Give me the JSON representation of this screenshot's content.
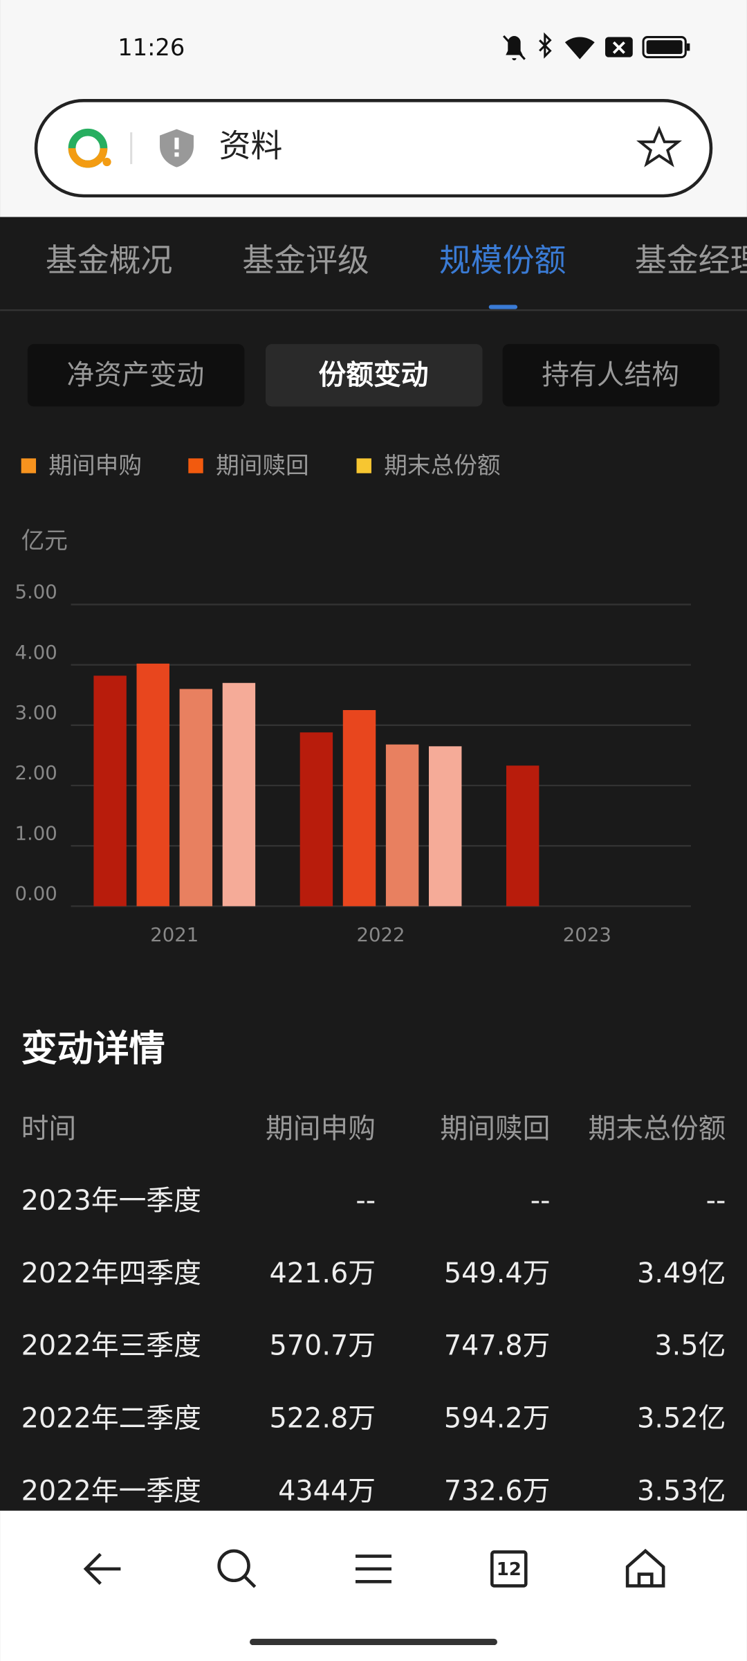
{
  "status_bar": {
    "time": "11:26"
  },
  "url_bar": {
    "text": "资料"
  },
  "tabs": [
    {
      "label": "基金概况"
    },
    {
      "label": "基金评级"
    },
    {
      "label": "规模份额",
      "active": true
    },
    {
      "label": "基金经理"
    }
  ],
  "sub_tabs": [
    {
      "label": "净资产变动"
    },
    {
      "label": "份额变动",
      "active": true
    },
    {
      "label": "持有人结构"
    }
  ],
  "chart_data": {
    "type": "bar",
    "legend": [
      {
        "name": "期间申购",
        "color": "#f7931e"
      },
      {
        "name": "期间赎回",
        "color": "#f25a0e"
      },
      {
        "name": "期末总份额",
        "color": "#f7c631"
      }
    ],
    "ylabel": "亿元",
    "categories": [
      "2021",
      "2022",
      "2023"
    ],
    "series": [
      {
        "color": "#b81c0c",
        "values": [
          3.82,
          2.88,
          2.33
        ]
      },
      {
        "color": "#e8461e",
        "values": [
          4.02,
          3.25,
          null
        ]
      },
      {
        "color": "#e88060",
        "values": [
          3.6,
          2.68,
          null
        ]
      },
      {
        "color": "#f5ab98",
        "values": [
          3.7,
          2.65,
          null
        ]
      }
    ],
    "ylim": [
      0,
      5
    ],
    "yticks": [
      {
        "value": 0,
        "label": "0.00"
      },
      {
        "value": 1,
        "label": "1.00"
      },
      {
        "value": 2,
        "label": "2.00"
      },
      {
        "value": 3,
        "label": "3.00"
      },
      {
        "value": 4,
        "label": "4.00"
      },
      {
        "value": 5,
        "label": "5.00"
      }
    ],
    "grid": true
  },
  "details": {
    "title": "变动详情",
    "header": [
      "时间",
      "期间申购",
      "期间赎回",
      "期末总份额"
    ],
    "rows": [
      [
        "2023年一季度",
        "--",
        "--",
        "--"
      ],
      [
        "2022年四季度",
        "421.6万",
        "549.4万",
        "3.49亿"
      ],
      [
        "2022年三季度",
        "570.7万",
        "747.8万",
        "3.5亿"
      ],
      [
        "2022年二季度",
        "522.8万",
        "594.2万",
        "3.52亿"
      ],
      [
        "2022年一季度",
        "4344万",
        "732.6万",
        "3.53亿"
      ]
    ]
  },
  "nav": {
    "tabs_count": "12"
  }
}
